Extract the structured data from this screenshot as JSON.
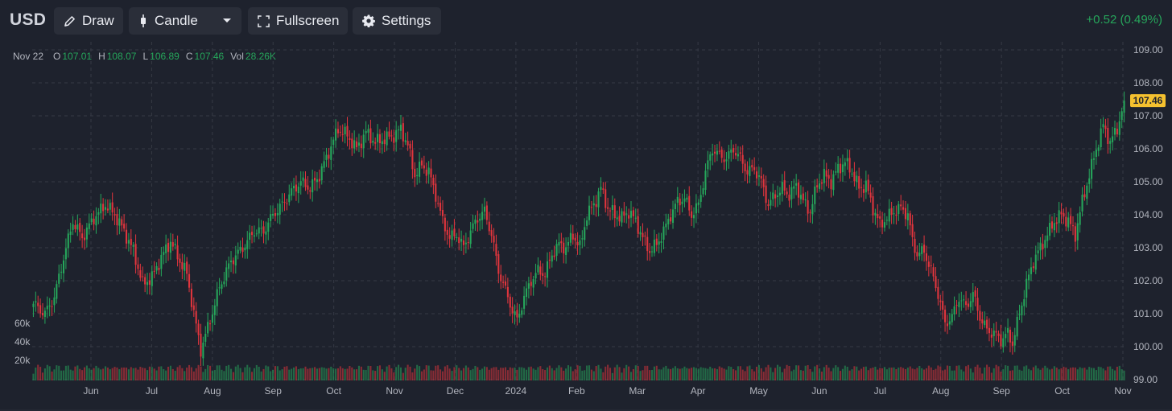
{
  "toolbar": {
    "symbol": "USD",
    "draw_label": "Draw",
    "chart_type_label": "Candle",
    "fullscreen_label": "Fullscreen",
    "settings_label": "Settings",
    "change_text": "+0.52 (0.49%)"
  },
  "ohlc": {
    "date": "Nov 22",
    "o_label": "O",
    "o_value": "107.01",
    "h_label": "H",
    "h_value": "108.07",
    "l_label": "L",
    "l_value": "106.89",
    "c_label": "C",
    "c_value": "107.46",
    "vol_label": "Vol",
    "vol_value": "28.26K"
  },
  "colors": {
    "background": "#1e222d",
    "up": "#26a65b",
    "down": "#e0353d",
    "grid": "#363a45",
    "last_price_badge": "#f5c12f"
  },
  "chart_data": {
    "type": "candlestick",
    "title": "",
    "price_axis": {
      "ticks": [
        "109.00",
        "108.00",
        "107.00",
        "106.00",
        "105.00",
        "104.00",
        "103.00",
        "102.00",
        "101.00",
        "100.00",
        "99.00"
      ],
      "ylim": [
        99.0,
        109.0
      ]
    },
    "volume_axis": {
      "ticks": [
        "60k",
        "40k",
        "20k"
      ]
    },
    "time_axis": {
      "labels": [
        "Jun",
        "Jul",
        "Aug",
        "Sep",
        "Oct",
        "Nov",
        "Dec",
        "2024",
        "Feb",
        "Mar",
        "Apr",
        "May",
        "Jun",
        "Jul",
        "Aug",
        "Sep",
        "Oct",
        "Nov"
      ],
      "range": [
        "2023-05",
        "2024-11-22"
      ]
    },
    "last_price": "107.46",
    "grid": true,
    "price_path": [
      {
        "t": 0,
        "p": 101.3
      },
      {
        "t": 5,
        "p": 101.0
      },
      {
        "t": 9,
        "p": 101.5
      },
      {
        "t": 13,
        "p": 102.7
      },
      {
        "t": 17,
        "p": 103.8
      },
      {
        "t": 21,
        "p": 103.3
      },
      {
        "t": 26,
        "p": 103.9
      },
      {
        "t": 31,
        "p": 104.3
      },
      {
        "t": 35,
        "p": 104.0
      },
      {
        "t": 39,
        "p": 103.5
      },
      {
        "t": 43,
        "p": 102.9
      },
      {
        "t": 47,
        "p": 101.9
      },
      {
        "t": 51,
        "p": 102.1
      },
      {
        "t": 55,
        "p": 102.7
      },
      {
        "t": 59,
        "p": 103.2
      },
      {
        "t": 63,
        "p": 102.6
      },
      {
        "t": 66,
        "p": 102.2
      },
      {
        "t": 69,
        "p": 101.0
      },
      {
        "t": 72,
        "p": 99.9
      },
      {
        "t": 76,
        "p": 100.8
      },
      {
        "t": 80,
        "p": 101.8
      },
      {
        "t": 85,
        "p": 102.6
      },
      {
        "t": 90,
        "p": 103.0
      },
      {
        "t": 95,
        "p": 103.5
      },
      {
        "t": 99,
        "p": 103.5
      },
      {
        "t": 103,
        "p": 104.0
      },
      {
        "t": 107,
        "p": 104.3
      },
      {
        "t": 111,
        "p": 104.7
      },
      {
        "t": 115,
        "p": 105.0
      },
      {
        "t": 119,
        "p": 104.8
      },
      {
        "t": 123,
        "p": 105.2
      },
      {
        "t": 127,
        "p": 105.9
      },
      {
        "t": 131,
        "p": 106.6
      },
      {
        "t": 135,
        "p": 106.4
      },
      {
        "t": 139,
        "p": 106.0
      },
      {
        "t": 143,
        "p": 106.5
      },
      {
        "t": 147,
        "p": 106.2
      },
      {
        "t": 151,
        "p": 106.3
      },
      {
        "t": 155,
        "p": 106.4
      },
      {
        "t": 158,
        "p": 106.6
      },
      {
        "t": 161,
        "p": 106.1
      },
      {
        "t": 164,
        "p": 105.2
      },
      {
        "t": 167,
        "p": 105.5
      },
      {
        "t": 170,
        "p": 105.3
      },
      {
        "t": 173,
        "p": 104.6
      },
      {
        "t": 176,
        "p": 103.8
      },
      {
        "t": 179,
        "p": 103.3
      },
      {
        "t": 182,
        "p": 103.4
      },
      {
        "t": 185,
        "p": 103.0
      },
      {
        "t": 188,
        "p": 103.5
      },
      {
        "t": 191,
        "p": 103.9
      },
      {
        "t": 194,
        "p": 104.1
      },
      {
        "t": 197,
        "p": 103.4
      },
      {
        "t": 200,
        "p": 102.3
      },
      {
        "t": 203,
        "p": 101.7
      },
      {
        "t": 206,
        "p": 101.1
      },
      {
        "t": 208,
        "p": 100.8
      },
      {
        "t": 211,
        "p": 101.5
      },
      {
        "t": 214,
        "p": 102.0
      },
      {
        "t": 217,
        "p": 102.3
      },
      {
        "t": 220,
        "p": 102.2
      },
      {
        "t": 223,
        "p": 102.8
      },
      {
        "t": 226,
        "p": 103.1
      },
      {
        "t": 229,
        "p": 103.0
      },
      {
        "t": 232,
        "p": 103.4
      },
      {
        "t": 235,
        "p": 103.0
      },
      {
        "t": 238,
        "p": 104.0
      },
      {
        "t": 241,
        "p": 104.3
      },
      {
        "t": 244,
        "p": 104.8
      },
      {
        "t": 247,
        "p": 104.2
      },
      {
        "t": 250,
        "p": 104.0
      },
      {
        "t": 253,
        "p": 103.9
      },
      {
        "t": 256,
        "p": 104.1
      },
      {
        "t": 259,
        "p": 103.8
      },
      {
        "t": 262,
        "p": 103.3
      },
      {
        "t": 265,
        "p": 102.9
      },
      {
        "t": 268,
        "p": 103.1
      },
      {
        "t": 271,
        "p": 103.5
      },
      {
        "t": 274,
        "p": 104.0
      },
      {
        "t": 277,
        "p": 104.4
      },
      {
        "t": 280,
        "p": 104.5
      },
      {
        "t": 283,
        "p": 104.0
      },
      {
        "t": 286,
        "p": 104.3
      },
      {
        "t": 289,
        "p": 105.3
      },
      {
        "t": 292,
        "p": 106.0
      },
      {
        "t": 295,
        "p": 105.8
      },
      {
        "t": 298,
        "p": 105.7
      },
      {
        "t": 301,
        "p": 106.0
      },
      {
        "t": 304,
        "p": 105.7
      },
      {
        "t": 307,
        "p": 105.3
      },
      {
        "t": 310,
        "p": 105.4
      },
      {
        "t": 313,
        "p": 105.0
      },
      {
        "t": 316,
        "p": 104.3
      },
      {
        "t": 319,
        "p": 104.6
      },
      {
        "t": 322,
        "p": 104.8
      },
      {
        "t": 325,
        "p": 104.6
      },
      {
        "t": 328,
        "p": 104.9
      },
      {
        "t": 331,
        "p": 104.4
      },
      {
        "t": 334,
        "p": 104.1
      },
      {
        "t": 337,
        "p": 104.9
      },
      {
        "t": 340,
        "p": 105.2
      },
      {
        "t": 343,
        "p": 105.0
      },
      {
        "t": 346,
        "p": 105.4
      },
      {
        "t": 349,
        "p": 105.6
      },
      {
        "t": 352,
        "p": 105.3
      },
      {
        "t": 355,
        "p": 104.8
      },
      {
        "t": 358,
        "p": 104.9
      },
      {
        "t": 361,
        "p": 104.2
      },
      {
        "t": 364,
        "p": 103.7
      },
      {
        "t": 367,
        "p": 103.9
      },
      {
        "t": 370,
        "p": 104.1
      },
      {
        "t": 373,
        "p": 104.2
      },
      {
        "t": 376,
        "p": 104.0
      },
      {
        "t": 378,
        "p": 103.2
      },
      {
        "t": 380,
        "p": 102.8
      },
      {
        "t": 383,
        "p": 102.9
      },
      {
        "t": 386,
        "p": 102.3
      },
      {
        "t": 389,
        "p": 101.6
      },
      {
        "t": 392,
        "p": 100.7
      },
      {
        "t": 395,
        "p": 100.9
      },
      {
        "t": 398,
        "p": 101.5
      },
      {
        "t": 401,
        "p": 101.2
      },
      {
        "t": 404,
        "p": 101.6
      },
      {
        "t": 407,
        "p": 100.9
      },
      {
        "t": 410,
        "p": 100.5
      },
      {
        "t": 413,
        "p": 100.4
      },
      {
        "t": 416,
        "p": 100.2
      },
      {
        "t": 419,
        "p": 100.4
      },
      {
        "t": 421,
        "p": 100.1
      },
      {
        "t": 424,
        "p": 101.0
      },
      {
        "t": 427,
        "p": 101.9
      },
      {
        "t": 430,
        "p": 102.6
      },
      {
        "t": 433,
        "p": 103.0
      },
      {
        "t": 436,
        "p": 103.4
      },
      {
        "t": 439,
        "p": 103.8
      },
      {
        "t": 442,
        "p": 104.0
      },
      {
        "t": 445,
        "p": 103.8
      },
      {
        "t": 448,
        "p": 103.4
      },
      {
        "t": 451,
        "p": 104.4
      },
      {
        "t": 454,
        "p": 105.2
      },
      {
        "t": 457,
        "p": 106.0
      },
      {
        "t": 460,
        "p": 106.7
      },
      {
        "t": 463,
        "p": 106.2
      },
      {
        "t": 466,
        "p": 106.6
      },
      {
        "t": 469,
        "p": 107.46
      }
    ]
  }
}
